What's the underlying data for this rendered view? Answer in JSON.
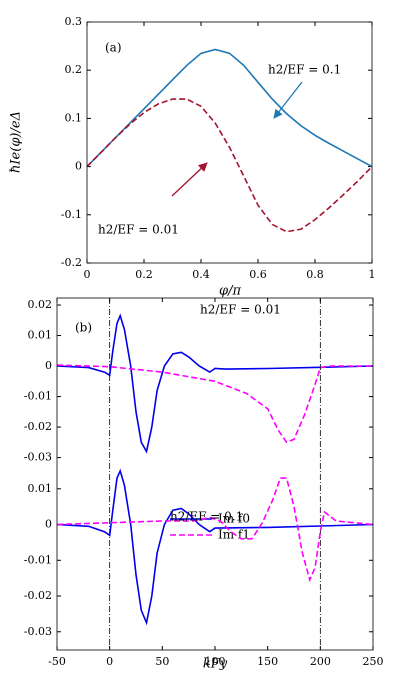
{
  "chart_data": [
    {
      "type": "line",
      "xlabel": "φ/π",
      "ylabel": "ħIe(φ)/eΔ",
      "xlim": [
        0,
        1
      ],
      "ylim": [
        -0.2,
        0.3
      ],
      "xticks": [
        0,
        0.2,
        0.4,
        0.6,
        0.8,
        1
      ],
      "yticks": [
        -0.2,
        -0.1,
        0,
        0.1,
        0.2,
        0.3
      ],
      "labels": [
        "(a)",
        "h2/EF = 0.1",
        "h2/EF = 0.01"
      ],
      "series": [
        {
          "color": "#1f77b4",
          "style": "solid",
          "x": [
            0,
            0.05,
            0.1,
            0.15,
            0.2,
            0.25,
            0.3,
            0.35,
            0.4,
            0.45,
            0.5,
            0.55,
            0.6,
            0.65,
            0.7,
            0.75,
            0.8,
            0.85,
            0.9,
            0.95,
            1
          ],
          "values": [
            0,
            0.03,
            0.06,
            0.09,
            0.12,
            0.15,
            0.18,
            0.21,
            0.235,
            0.243,
            0.235,
            0.21,
            0.175,
            0.14,
            0.11,
            0.085,
            0.065,
            0.048,
            0.032,
            0.016,
            0
          ]
        },
        {
          "color": "#a2142f",
          "style": "dashed",
          "x": [
            0,
            0.05,
            0.1,
            0.15,
            0.2,
            0.25,
            0.3,
            0.35,
            0.4,
            0.45,
            0.5,
            0.55,
            0.6,
            0.65,
            0.7,
            0.75,
            0.8,
            0.85,
            0.9,
            0.95,
            1
          ],
          "values": [
            0,
            0.03,
            0.06,
            0.088,
            0.112,
            0.13,
            0.14,
            0.14,
            0.125,
            0.09,
            0.04,
            -0.02,
            -0.08,
            -0.12,
            -0.135,
            -0.13,
            -0.11,
            -0.085,
            -0.058,
            -0.03,
            0
          ]
        }
      ]
    },
    {
      "type": "line",
      "xlim": [
        -50,
        250
      ],
      "ylim": [
        -0.038,
        0.0223
      ],
      "yticks": [
        0.02,
        0.01,
        0,
        -0.01,
        -0.02,
        -0.03
      ],
      "labels": [
        "(b)",
        "h2/EF = 0.01"
      ],
      "series": [
        {
          "name": "Im f0",
          "color": "#0000ee",
          "style": "solid",
          "x": [
            -50,
            -20,
            -5,
            0,
            3,
            7,
            10,
            14,
            20,
            25,
            30,
            35,
            40,
            45,
            52,
            60,
            68,
            75,
            85,
            95,
            100,
            110,
            150,
            200,
            250
          ],
          "values": [
            0,
            -0.0005,
            -0.002,
            -0.003,
            0.005,
            0.014,
            0.0165,
            0.012,
            0,
            -0.015,
            -0.025,
            -0.028,
            -0.02,
            -0.008,
            0,
            0.004,
            0.0045,
            0.003,
            0,
            -0.002,
            -0.0008,
            -0.001,
            -0.0008,
            -0.0004,
            0
          ]
        },
        {
          "name": "Im f1",
          "color": "#ff00ff",
          "style": "dashed",
          "x": [
            -50,
            0,
            50,
            100,
            130,
            150,
            160,
            168,
            175,
            185,
            195,
            200,
            210,
            250
          ],
          "values": [
            0.0003,
            -0.0002,
            -0.002,
            -0.005,
            -0.009,
            -0.014,
            -0.021,
            -0.025,
            -0.024,
            -0.016,
            -0.006,
            -0.0005,
            0,
            0
          ]
        }
      ]
    },
    {
      "type": "line",
      "xlabel": "kFy",
      "xlim": [
        -50,
        250
      ],
      "ylim": [
        -0.0351,
        0.0119
      ],
      "xticks": [
        -50,
        0,
        50,
        100,
        150,
        200,
        250
      ],
      "yticks": [
        0.01,
        0,
        -0.01,
        -0.02,
        -0.03
      ],
      "vlines": [
        0,
        200
      ],
      "labels": [
        "h2/EF = 0.1"
      ],
      "series": [
        {
          "color": "#0000ee",
          "style": "solid",
          "x": [
            -50,
            -20,
            -5,
            0,
            3,
            7,
            10,
            14,
            20,
            25,
            30,
            35,
            40,
            45,
            52,
            60,
            68,
            75,
            85,
            95,
            100,
            150,
            200,
            250
          ],
          "values": [
            0,
            -0.0005,
            -0.002,
            -0.003,
            0.004,
            0.013,
            0.015,
            0.011,
            0,
            -0.014,
            -0.024,
            -0.0275,
            -0.02,
            -0.008,
            0,
            0.004,
            0.0045,
            0.003,
            0,
            -0.002,
            -0.001,
            -0.0008,
            -0.0004,
            0
          ]
        },
        {
          "color": "#ff00ff",
          "style": "dashed",
          "x": [
            -50,
            50,
            80,
            95,
            105,
            115,
            125,
            135,
            145,
            155,
            162,
            168,
            175,
            183,
            190,
            195,
            200,
            204,
            215,
            250
          ],
          "values": [
            0,
            0.001,
            0.001,
            0.002,
            0.001,
            -0.002,
            -0.004,
            -0.004,
            0.0005,
            0.007,
            0.013,
            0.013,
            0.005,
            -0.008,
            -0.0155,
            -0.012,
            -0.002,
            0.0035,
            0.001,
            0
          ]
        }
      ]
    }
  ]
}
